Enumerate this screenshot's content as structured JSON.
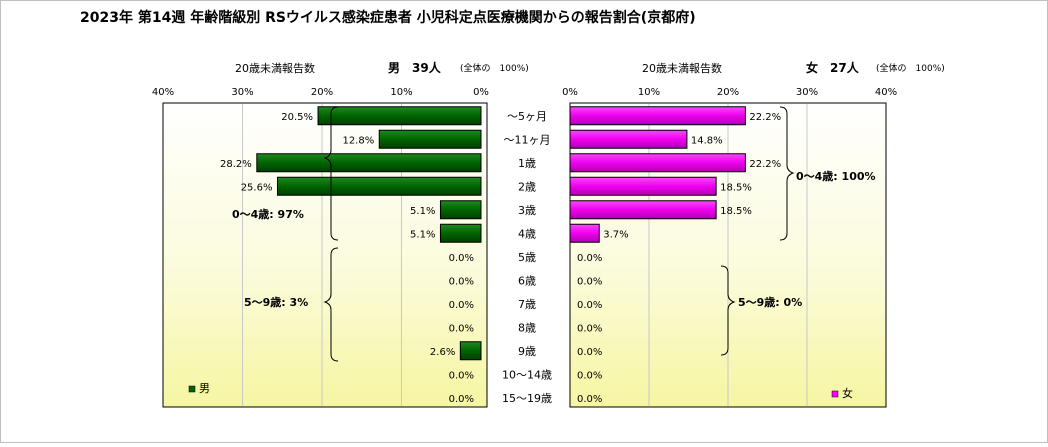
{
  "title": "2023年 第14週 年齢階級別 RSウイルス感染症患者 小児科定点医療機関からの報告割合(京都府)",
  "chart_data": [
    {
      "type": "bar",
      "orientation": "horizontal",
      "direction": "right-to-left",
      "axis_title": "20歳未満報告数",
      "header_sex": "男",
      "header_count": "39人",
      "header_total": "(全体の　100%)",
      "xlim": [
        0,
        40
      ],
      "x_ticks": [
        "40%",
        "30%",
        "20%",
        "10%",
        "0%"
      ],
      "categories": [
        "～5ヶ月",
        "～11ヶ月",
        "1歳",
        "2歳",
        "3歳",
        "4歳",
        "5歳",
        "6歳",
        "7歳",
        "8歳",
        "9歳",
        "10～14歳",
        "15～19歳"
      ],
      "values": [
        20.5,
        12.8,
        28.2,
        25.6,
        5.1,
        5.1,
        0.0,
        0.0,
        0.0,
        0.0,
        2.6,
        0.0,
        0.0
      ],
      "data_labels": [
        "20.5%",
        "12.8%",
        "28.2%",
        "25.6%",
        "5.1%",
        "5.1%",
        "0.0%",
        "0.0%",
        "0.0%",
        "0.0%",
        "2.6%",
        "0.0%",
        "0.0%"
      ],
      "annotations": [
        "0～4歳: 97%",
        "5～9歳: 3%"
      ],
      "legend": "男",
      "legend_position": "bottom-left",
      "bar_color": "#006400",
      "grid": true
    },
    {
      "type": "bar",
      "orientation": "horizontal",
      "direction": "left-to-right",
      "axis_title": "20歳未満報告数",
      "header_sex": "女",
      "header_count": "27人",
      "header_total": "(全体の　100%)",
      "xlim": [
        0,
        40
      ],
      "x_ticks": [
        "0%",
        "10%",
        "20%",
        "30%",
        "40%"
      ],
      "categories": [
        "～5ヶ月",
        "～11ヶ月",
        "1歳",
        "2歳",
        "3歳",
        "4歳",
        "5歳",
        "6歳",
        "7歳",
        "8歳",
        "9歳",
        "10～14歳",
        "15～19歳"
      ],
      "values": [
        22.2,
        14.8,
        22.2,
        18.5,
        18.5,
        3.7,
        0.0,
        0.0,
        0.0,
        0.0,
        0.0,
        0.0,
        0.0
      ],
      "data_labels": [
        "22.2%",
        "14.8%",
        "22.2%",
        "18.5%",
        "18.5%",
        "3.7%",
        "0.0%",
        "0.0%",
        "0.0%",
        "0.0%",
        "0.0%",
        "0.0%",
        "0.0%"
      ],
      "annotations": [
        "0～4歳: 100%",
        "5～9歳: 0%"
      ],
      "legend": "女",
      "legend_position": "bottom-right",
      "bar_color": "#ff00ff",
      "grid": true
    }
  ]
}
